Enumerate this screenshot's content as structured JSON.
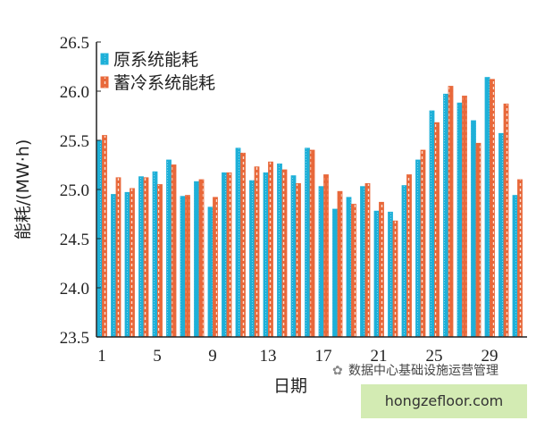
{
  "chart_data": {
    "type": "bar",
    "title": "",
    "xlabel": "日期",
    "ylabel": "能耗/(MW·h)",
    "ylim": [
      23.5,
      26.5
    ],
    "yticks": [
      "23.5",
      "24.0",
      "24.5",
      "25.0",
      "25.5",
      "26.0",
      "26.5"
    ],
    "xticks": [
      "1",
      "5",
      "9",
      "13",
      "17",
      "21",
      "25",
      "29"
    ],
    "categories": [
      1,
      2,
      3,
      4,
      5,
      6,
      7,
      8,
      9,
      10,
      11,
      12,
      13,
      14,
      15,
      16,
      17,
      18,
      19,
      20,
      21,
      22,
      23,
      24,
      25,
      26,
      27,
      28,
      29,
      30,
      31
    ],
    "legend_position": "top-left",
    "series": [
      {
        "name": "原系统能耗",
        "color": "#1eb0d8",
        "values": [
          25.5,
          24.95,
          24.97,
          25.13,
          25.18,
          25.3,
          24.93,
          25.08,
          24.82,
          25.17,
          25.42,
          25.09,
          25.17,
          25.26,
          25.14,
          25.42,
          25.03,
          24.8,
          24.92,
          25.03,
          24.78,
          24.77,
          25.04,
          25.3,
          25.8,
          25.97,
          25.88,
          25.7,
          26.14,
          25.57,
          24.94
        ]
      },
      {
        "name": "蓄冷系统能耗",
        "color": "#e8683a",
        "values": [
          25.55,
          25.12,
          25.01,
          25.12,
          25.05,
          25.25,
          24.94,
          25.1,
          24.92,
          25.17,
          25.37,
          25.23,
          25.28,
          25.2,
          25.06,
          25.4,
          25.15,
          24.98,
          24.85,
          25.06,
          24.87,
          24.68,
          25.15,
          25.4,
          25.68,
          26.05,
          25.95,
          25.47,
          26.12,
          25.87,
          25.1
        ]
      }
    ]
  },
  "watermark": {
    "text": "数据中心基础设施运营管理",
    "site": "hongzefloor.com"
  }
}
